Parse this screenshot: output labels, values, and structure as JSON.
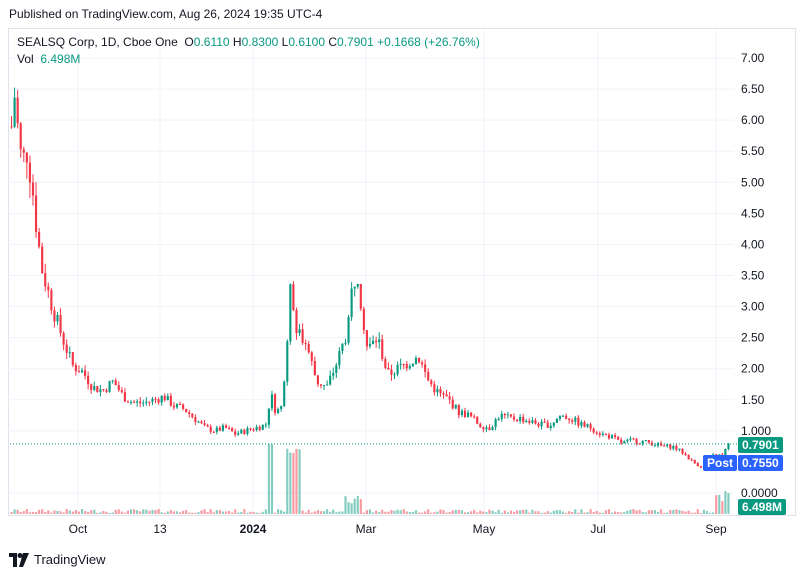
{
  "published_line": "Published on TradingView.com, Aug 26, 2024 19:35 UTC-4",
  "legend": {
    "symbol": "SEALSQ Corp, 1D, Cboe One",
    "o_label": "O",
    "o_value": "0.6110",
    "h_label": "H",
    "h_value": "0.8300",
    "l_label": "L",
    "l_value": "0.6100",
    "c_label": "C",
    "c_value": "0.7901",
    "change": "+0.1668 (+26.76%)"
  },
  "vol_legend": {
    "label": "Vol",
    "value": "6.498M"
  },
  "badges": {
    "last_price": "0.7901",
    "post_label": "Post",
    "post_price": "0.7550",
    "volume": "6.498M"
  },
  "colors": {
    "up": "#089981",
    "down": "#f23645",
    "post": "#2962ff",
    "grid": "#f0f3fa"
  },
  "footer": {
    "brand": "TradingView",
    "logo_icon": "tradingview-logo-icon"
  },
  "chart_data": {
    "type": "candlestick",
    "title": "SEALSQ Corp, 1D, Cboe One",
    "x_tick_labels": [
      "Oct",
      "13",
      "2024",
      "Mar",
      "May",
      "Jul",
      "Sep"
    ],
    "y_tick_labels": [
      "7.00",
      "6.50",
      "6.00",
      "5.50",
      "5.00",
      "4.50",
      "4.00",
      "3.50",
      "3.00",
      "2.50",
      "2.00",
      "1.50",
      "1.000",
      "0.0000"
    ],
    "ylim": [
      0.0,
      7.0
    ],
    "grid": true,
    "last_close": 0.7901,
    "post_market_price": 0.755,
    "last_volume": "6.498M",
    "price_path": [
      [
        0,
        5.9
      ],
      [
        0.3,
        6.4
      ],
      [
        0.6,
        5.9
      ],
      [
        1,
        5.3
      ],
      [
        1.5,
        5.5
      ],
      [
        2,
        5.0
      ],
      [
        2.5,
        4.2
      ],
      [
        3,
        3.6
      ],
      [
        4,
        3.0
      ],
      [
        5,
        2.5
      ],
      [
        6,
        2.05
      ],
      [
        7,
        1.95
      ],
      [
        8,
        1.7
      ],
      [
        9,
        1.65
      ],
      [
        10,
        1.8
      ],
      [
        11,
        1.55
      ],
      [
        12,
        1.45
      ],
      [
        13,
        1.45
      ],
      [
        14,
        1.5
      ],
      [
        15,
        1.55
      ],
      [
        16,
        1.4
      ],
      [
        17,
        1.35
      ],
      [
        18,
        1.2
      ],
      [
        19,
        1.05
      ],
      [
        20,
        1.0
      ],
      [
        21,
        1.05
      ],
      [
        22,
        0.95
      ],
      [
        23,
        1.0
      ],
      [
        24,
        1.05
      ],
      [
        25,
        1.1
      ],
      [
        25.5,
        1.6
      ],
      [
        26,
        1.3
      ],
      [
        26.6,
        1.4
      ],
      [
        27,
        2.3
      ],
      [
        27.5,
        3.4
      ],
      [
        28,
        2.6
      ],
      [
        29,
        2.4
      ],
      [
        30,
        1.8
      ],
      [
        31,
        1.7
      ],
      [
        32,
        2.1
      ],
      [
        33,
        2.6
      ],
      [
        33.5,
        3.3
      ],
      [
        34,
        3.6
      ],
      [
        34.5,
        2.9
      ],
      [
        35,
        2.3
      ],
      [
        36,
        2.5
      ],
      [
        37,
        1.9
      ],
      [
        38,
        2.0
      ],
      [
        39,
        2.1
      ],
      [
        40,
        2.2
      ],
      [
        41,
        1.8
      ],
      [
        42,
        1.6
      ],
      [
        43,
        1.5
      ],
      [
        44,
        1.3
      ],
      [
        45,
        1.25
      ],
      [
        46,
        1.1
      ],
      [
        47,
        1.05
      ],
      [
        48,
        1.25
      ],
      [
        49,
        1.2
      ],
      [
        50,
        1.2
      ],
      [
        51,
        1.15
      ],
      [
        52,
        1.1
      ],
      [
        53,
        1.1
      ],
      [
        54,
        1.25
      ],
      [
        55,
        1.2
      ],
      [
        56,
        1.1
      ],
      [
        57,
        1.05
      ],
      [
        58,
        0.95
      ],
      [
        59,
        0.9
      ],
      [
        60,
        0.8
      ],
      [
        61,
        0.85
      ],
      [
        62,
        0.83
      ],
      [
        63,
        0.8
      ],
      [
        64,
        0.75
      ],
      [
        65,
        0.75
      ],
      [
        66,
        0.65
      ],
      [
        67,
        0.5
      ],
      [
        68,
        0.4
      ],
      [
        68.5,
        0.45
      ],
      [
        69,
        0.6
      ],
      [
        70,
        0.62
      ],
      [
        70.5,
        0.79
      ]
    ]
  }
}
